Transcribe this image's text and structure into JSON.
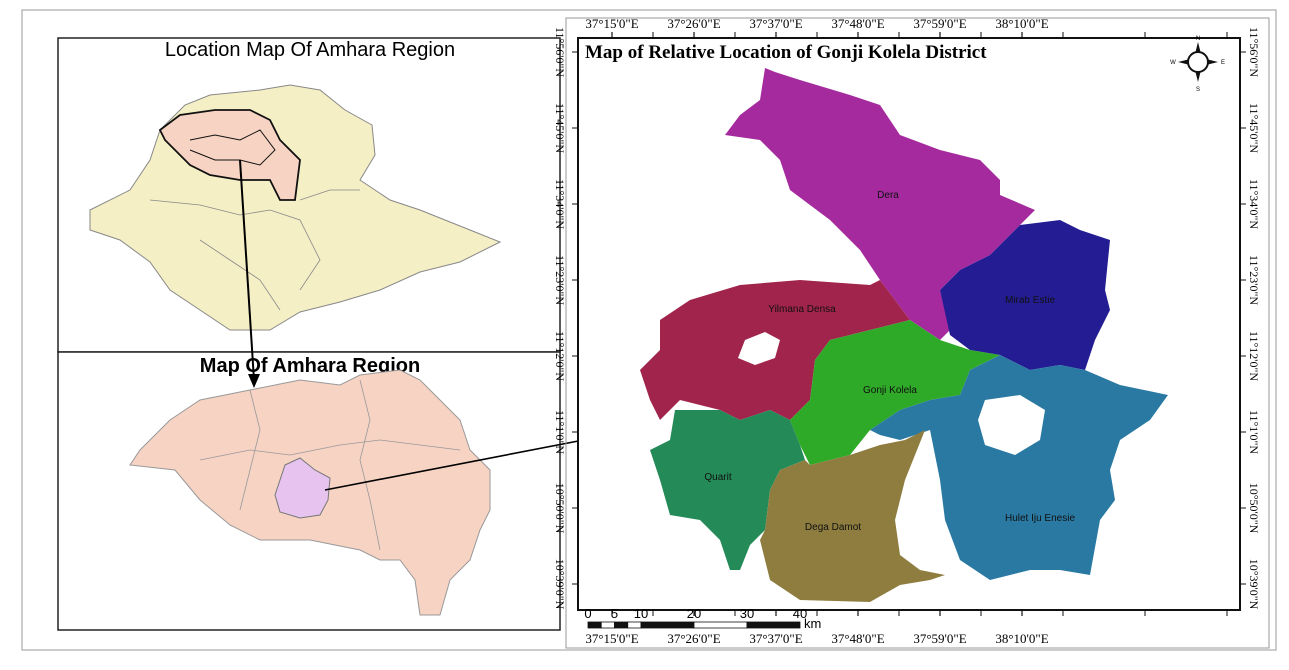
{
  "inset_top": {
    "title": "Location Map Of Amhara Region"
  },
  "inset_bottom": {
    "title": "Map Of Amhara Region"
  },
  "main_map": {
    "title": "Map of Relative Location of Gonji Kolela District",
    "longitude_labels": [
      "37°15'0\"E",
      "37°26'0\"E",
      "37°37'0\"E",
      "37°48'0\"E",
      "37°59'0\"E",
      "38°10'0\"E"
    ],
    "latitude_labels": [
      "11°56'0\"N",
      "11°45'0\"N",
      "11°34'0\"N",
      "11°23'0\"N",
      "11°12'0\"N",
      "11°1'0\"N",
      "10°50'0\"N",
      "10°39'0\"N"
    ],
    "districts": [
      {
        "name": "Dera",
        "color": "#A42A9E"
      },
      {
        "name": "Mirab Estie",
        "color": "#241C92"
      },
      {
        "name": "Yilmana Densa",
        "color": "#A0244B"
      },
      {
        "name": "Gonji Kolela",
        "color": "#2FA928"
      },
      {
        "name": "Hulet Iju Enesie",
        "color": "#2A79A3"
      },
      {
        "name": "Quarit",
        "color": "#238A58"
      },
      {
        "name": "Dega Damot",
        "color": "#8E7D3F"
      }
    ],
    "scale_bar": {
      "ticks": [
        "0",
        "5",
        "10",
        "20",
        "30",
        "40"
      ],
      "unit": "km"
    },
    "north_arrow": {
      "icon": "compass-rose-icon",
      "n": "N",
      "s": "S",
      "e": "E",
      "w": "W"
    }
  },
  "colors": {
    "ethiopia": "#F5EFC6",
    "amhara": "#F7D3C3",
    "study_area": "#E6C4EF"
  }
}
